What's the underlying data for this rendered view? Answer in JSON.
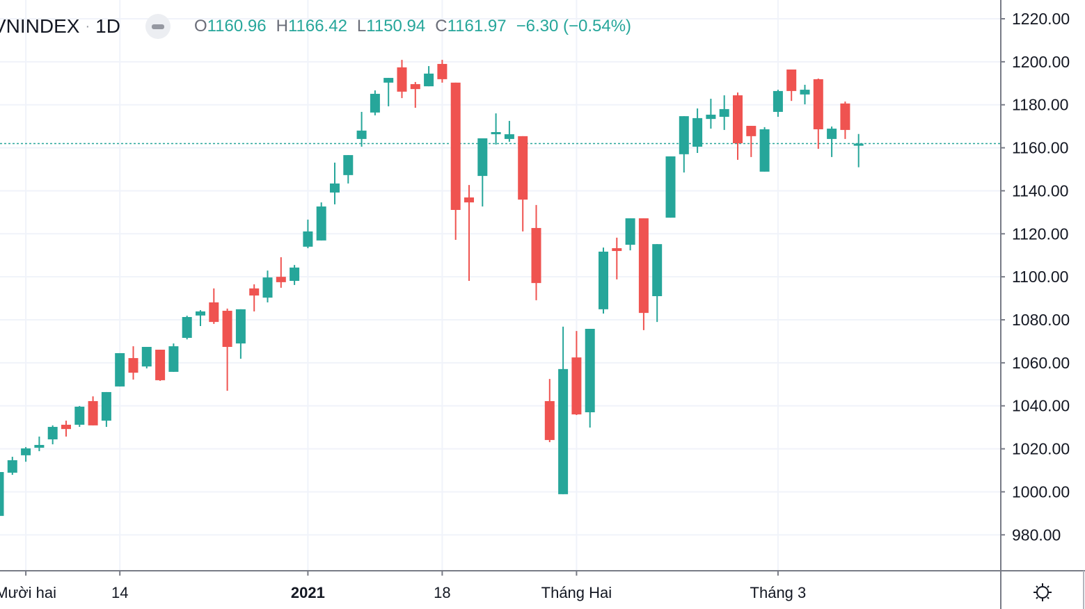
{
  "header": {
    "symbol": "VNINDEX",
    "separator": "·",
    "resolution": "1D",
    "ohlc": {
      "open_label": "O",
      "open": "1160.96",
      "high_label": "H",
      "high": "1166.42",
      "low_label": "L",
      "low": "1150.94",
      "close_label": "C",
      "close": "1161.97",
      "change": "−6.30 (−0.54%)"
    }
  },
  "colors": {
    "up": "#26a69a",
    "down": "#ef5350",
    "grid": "#f0f3fa",
    "text": "#131722"
  },
  "icons": {
    "hide": "minus-pill-icon",
    "settings": "sun-gear-icon"
  },
  "chart_data": {
    "type": "candlestick",
    "ylim": [
      970,
      1225
    ],
    "y_ticks": [
      "980.00",
      "1000.00",
      "1020.00",
      "1040.00",
      "1060.00",
      "1080.00",
      "1100.00",
      "1120.00",
      "1140.00",
      "1160.00",
      "1180.00",
      "1200.00",
      "1220.00"
    ],
    "x_ticks": [
      {
        "label": "Mười hai",
        "candle": 2,
        "bold": false
      },
      {
        "label": "14",
        "candle": 9,
        "bold": false
      },
      {
        "label": "2021",
        "candle": 23,
        "bold": true
      },
      {
        "label": "18",
        "candle": 33,
        "bold": false
      },
      {
        "label": "Tháng Hai",
        "candle": 43,
        "bold": false
      },
      {
        "label": "Tháng 3",
        "candle": 58,
        "bold": false
      }
    ],
    "last_price": 1161.97,
    "grid": true,
    "ohlc": [
      [
        988.8,
        1009.2,
        988.8,
        1009.2
      ],
      [
        1008.9,
        1016.3,
        1007.9,
        1014.7
      ],
      [
        1017.0,
        1020.8,
        1014.0,
        1020.2
      ],
      [
        1020.5,
        1025.7,
        1018.9,
        1021.8
      ],
      [
        1024.4,
        1030.9,
        1022.1,
        1030.2
      ],
      [
        1031.2,
        1033.1,
        1025.7,
        1029.2
      ],
      [
        1031.2,
        1039.9,
        1030.2,
        1039.6
      ],
      [
        1042.2,
        1044.4,
        1030.9,
        1030.9
      ],
      [
        1033.1,
        1046.4,
        1030.2,
        1046.4
      ],
      [
        1049.0,
        1064.5,
        1049.0,
        1064.5
      ],
      [
        1062.2,
        1067.7,
        1052.2,
        1055.4
      ],
      [
        1058.3,
        1067.4,
        1057.4,
        1067.4
      ],
      [
        1066.1,
        1066.1,
        1051.6,
        1051.9
      ],
      [
        1055.8,
        1069.0,
        1055.8,
        1067.7
      ],
      [
        1071.6,
        1081.9,
        1070.9,
        1081.3
      ],
      [
        1082.0,
        1084.5,
        1077.1,
        1083.9
      ],
      [
        1088.1,
        1094.6,
        1078.1,
        1079.0
      ],
      [
        1084.2,
        1085.2,
        1047.0,
        1067.4
      ],
      [
        1069.0,
        1084.9,
        1061.9,
        1084.9
      ],
      [
        1094.6,
        1096.5,
        1083.9,
        1091.3
      ],
      [
        1090.3,
        1102.9,
        1088.1,
        1099.7
      ],
      [
        1100.0,
        1109.1,
        1094.9,
        1097.5
      ],
      [
        1098.1,
        1105.5,
        1096.2,
        1104.3
      ],
      [
        1114.0,
        1126.6,
        1113.3,
        1121.1
      ],
      [
        1116.9,
        1134.6,
        1116.9,
        1132.7
      ],
      [
        1139.2,
        1153.1,
        1133.7,
        1143.4
      ],
      [
        1147.3,
        1156.6,
        1143.4,
        1156.6
      ],
      [
        1164.1,
        1176.7,
        1160.5,
        1168.0
      ],
      [
        1176.4,
        1186.7,
        1175.1,
        1185.1
      ],
      [
        1190.3,
        1192.5,
        1179.3,
        1192.5
      ],
      [
        1197.4,
        1200.9,
        1183.1,
        1186.1
      ],
      [
        1189.6,
        1190.6,
        1178.6,
        1187.3
      ],
      [
        1188.6,
        1198.0,
        1188.6,
        1194.5
      ],
      [
        1199.0,
        1200.9,
        1190.3,
        1191.9
      ],
      [
        1190.3,
        1190.3,
        1117.2,
        1131.1
      ],
      [
        1136.9,
        1142.7,
        1098.1,
        1134.6
      ],
      [
        1146.9,
        1164.4,
        1132.7,
        1164.4
      ],
      [
        1166.3,
        1176.0,
        1161.5,
        1167.3
      ],
      [
        1164.1,
        1172.5,
        1162.8,
        1166.3
      ],
      [
        1165.4,
        1165.4,
        1121.1,
        1135.9
      ],
      [
        1122.7,
        1133.4,
        1089.1,
        1097.1
      ],
      [
        1042.2,
        1052.5,
        1023.1,
        1024.1
      ],
      [
        998.9,
        1076.8,
        998.9,
        1057.1
      ],
      [
        1062.5,
        1074.8,
        1035.7,
        1036.0
      ],
      [
        1037.0,
        1075.8,
        1029.9,
        1075.8
      ],
      [
        1084.9,
        1113.6,
        1082.9,
        1111.7
      ],
      [
        1113.3,
        1118.2,
        1098.8,
        1112.0
      ],
      [
        1114.9,
        1127.2,
        1112.3,
        1127.2
      ],
      [
        1127.2,
        1127.2,
        1075.2,
        1083.2
      ],
      [
        1091.0,
        1115.2,
        1079.0,
        1115.2
      ],
      [
        1127.5,
        1156.0,
        1127.5,
        1156.0
      ],
      [
        1157.0,
        1174.7,
        1148.5,
        1174.7
      ],
      [
        1160.5,
        1178.3,
        1157.6,
        1173.8
      ],
      [
        1173.4,
        1182.8,
        1168.9,
        1175.4
      ],
      [
        1174.4,
        1184.4,
        1168.3,
        1178.0
      ],
      [
        1184.4,
        1185.7,
        1154.4,
        1162.1
      ],
      [
        1170.2,
        1170.2,
        1155.7,
        1165.4
      ],
      [
        1148.9,
        1169.6,
        1148.9,
        1168.6
      ],
      [
        1176.7,
        1187.0,
        1174.4,
        1186.4
      ],
      [
        1196.4,
        1196.4,
        1181.8,
        1186.4
      ],
      [
        1184.8,
        1189.3,
        1180.2,
        1187.0
      ],
      [
        1191.9,
        1192.2,
        1159.5,
        1168.6
      ],
      [
        1164.1,
        1169.9,
        1155.7,
        1168.9
      ],
      [
        1180.6,
        1181.5,
        1164.1,
        1168.3
      ],
      [
        1160.96,
        1166.42,
        1150.94,
        1161.97
      ]
    ]
  }
}
